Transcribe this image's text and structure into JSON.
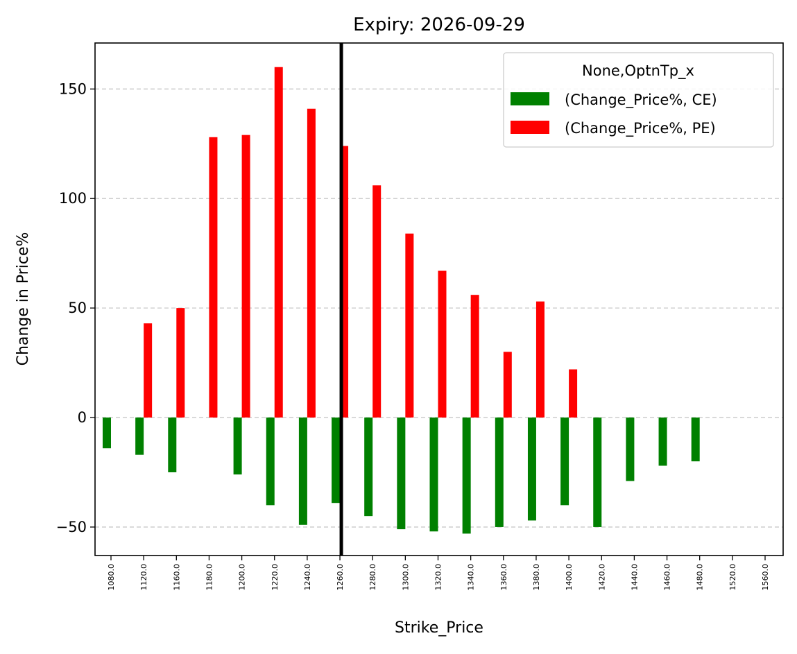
{
  "chart_data": {
    "type": "bar",
    "title": "Expiry: 2026-09-29",
    "xlabel": "Strike_Price",
    "ylabel": "Change in Price%",
    "categories": [
      "1080.0",
      "1120.0",
      "1160.0",
      "1180.0",
      "1200.0",
      "1220.0",
      "1240.0",
      "1260.0",
      "1280.0",
      "1300.0",
      "1320.0",
      "1340.0",
      "1360.0",
      "1380.0",
      "1400.0",
      "1420.0",
      "1440.0",
      "1460.0",
      "1480.0",
      "1520.0",
      "1560.0"
    ],
    "series": [
      {
        "name": "(Change_Price%, CE)",
        "color": "#008000",
        "values": [
          -14,
          -17,
          -25,
          null,
          -26,
          -40,
          -49,
          -39,
          -45,
          -51,
          -52,
          -53,
          -50,
          -47,
          -40,
          -50,
          -29,
          -22,
          -20,
          null,
          null
        ]
      },
      {
        "name": "(Change_Price%, PE)",
        "color": "#ff0000",
        "values": [
          null,
          43,
          50,
          128,
          129,
          160,
          141,
          124,
          106,
          84,
          67,
          56,
          30,
          53,
          22,
          null,
          null,
          null,
          null,
          null,
          null
        ]
      }
    ],
    "yticks": [
      -50,
      0,
      50,
      100,
      150
    ],
    "ylim": [
      -63,
      171
    ],
    "vline": {
      "category": "1260.0",
      "color": "#000000"
    },
    "legend": {
      "title": "None,OptnTp_x",
      "position": "top-right"
    },
    "grid": "y-dashed"
  }
}
